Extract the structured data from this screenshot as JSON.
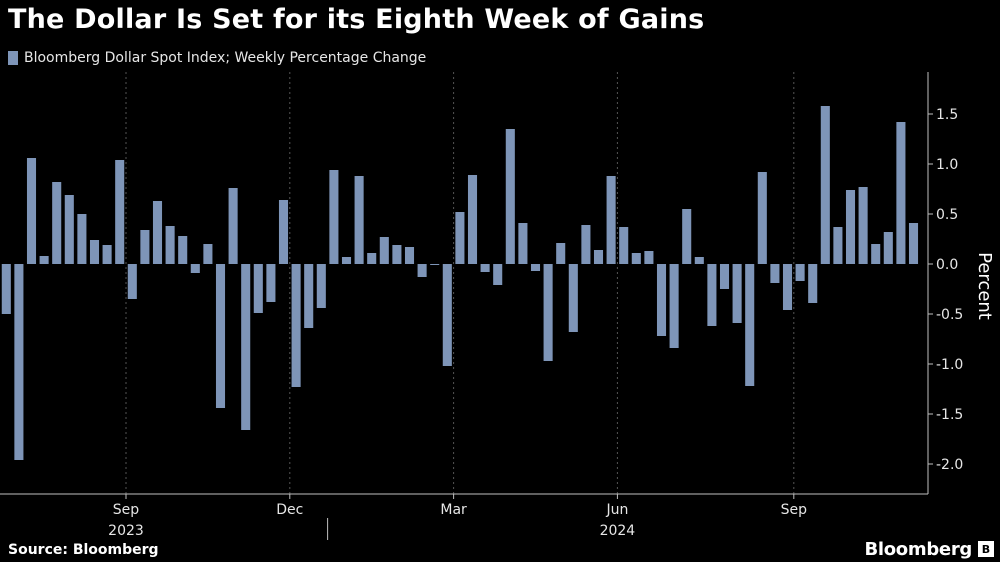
{
  "title": "The Dollar Is Set for its Eighth Week of Gains",
  "source": "Source: Bloomberg",
  "brand": "Bloomberg",
  "colors": {
    "bar": "#7e95b8",
    "background": "#000000",
    "grid": "#555555",
    "text": "#ffffff"
  },
  "icons": {
    "brand_mark": "bloomberg-logo-icon"
  },
  "chart_data": {
    "type": "bar",
    "series": [
      {
        "name": "Bloomberg Dollar Spot Index; Weekly Percentage Change",
        "values": [
          -0.5,
          -1.96,
          1.06,
          0.08,
          0.82,
          0.69,
          0.5,
          0.24,
          0.19,
          1.04,
          -0.35,
          0.34,
          0.63,
          0.38,
          0.28,
          -0.09,
          0.2,
          -1.44,
          0.76,
          -1.66,
          -0.49,
          -0.38,
          0.64,
          -1.23,
          -0.64,
          -0.44,
          0.94,
          0.07,
          0.88,
          0.11,
          0.27,
          0.19,
          0.17,
          -0.13,
          -0.01,
          -1.02,
          0.52,
          0.89,
          -0.08,
          -0.21,
          1.35,
          0.41,
          -0.07,
          -0.97,
          0.21,
          -0.68,
          0.39,
          0.14,
          0.88,
          0.37,
          0.11,
          0.13,
          -0.72,
          -0.84,
          0.55,
          0.07,
          -0.62,
          -0.25,
          -0.59,
          -1.22,
          0.92,
          -0.19,
          -0.46,
          -0.17,
          -0.39,
          1.58,
          0.37,
          0.74,
          0.77,
          0.2,
          0.32,
          1.42,
          0.41
        ]
      }
    ],
    "x_tick_labels": [
      "Sep",
      "Dec",
      "Mar",
      "Jun",
      "Sep"
    ],
    "x_tick_bar_index": [
      9.5,
      22.5,
      35.5,
      48.5,
      62.5
    ],
    "year_labels": [
      "2023",
      "2024"
    ],
    "year_label_bar_index": [
      9.5,
      48.5
    ],
    "year_divider_bar_index": 25.5,
    "y_ticks": [
      1.5,
      1.0,
      0.5,
      0.0,
      -0.5,
      -1.0,
      -1.5,
      -2.0
    ],
    "y_tick_labels": [
      "1.5",
      "1.0",
      "0.5",
      "0.0",
      "-0.5",
      "-1.0",
      "-1.5",
      "-2.0"
    ],
    "ylim": [
      -2.3,
      1.9
    ],
    "ylabel": "Percent",
    "xlabel": "",
    "grid": "vertical dotted",
    "legend_position": "top-left"
  }
}
